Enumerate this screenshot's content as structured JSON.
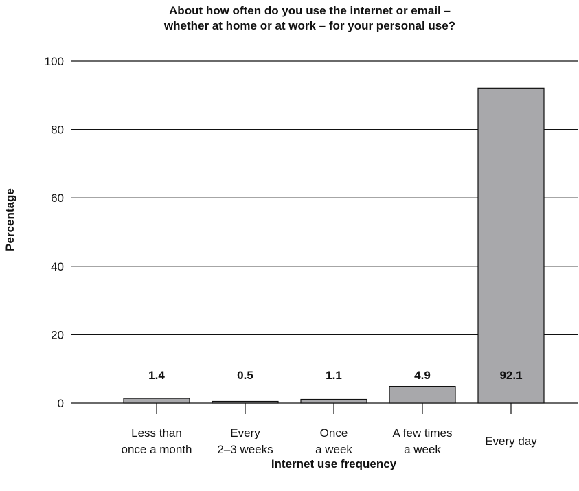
{
  "chart_data": {
    "type": "bar",
    "title_lines": [
      "About how often do you use the internet or email –",
      "whether at home or at work – for your personal use?"
    ],
    "xlabel": "Internet use frequency",
    "ylabel": "Percentage",
    "ylim": [
      0,
      100
    ],
    "yticks": [
      "0",
      "20",
      "40",
      "60",
      "80",
      "100"
    ],
    "grid": true,
    "categories": [
      [
        "Less than",
        "once a month"
      ],
      [
        "Every",
        "2–3 weeks"
      ],
      [
        "Once",
        "a week"
      ],
      [
        "A few times",
        "a week"
      ],
      [
        "Every day"
      ]
    ],
    "values": [
      1.4,
      0.5,
      1.1,
      4.9,
      92.1
    ],
    "data_labels": [
      "1.4",
      "0.5",
      "1.1",
      "4.9",
      "92.1"
    ],
    "bar_color": "#a8a8ab"
  }
}
